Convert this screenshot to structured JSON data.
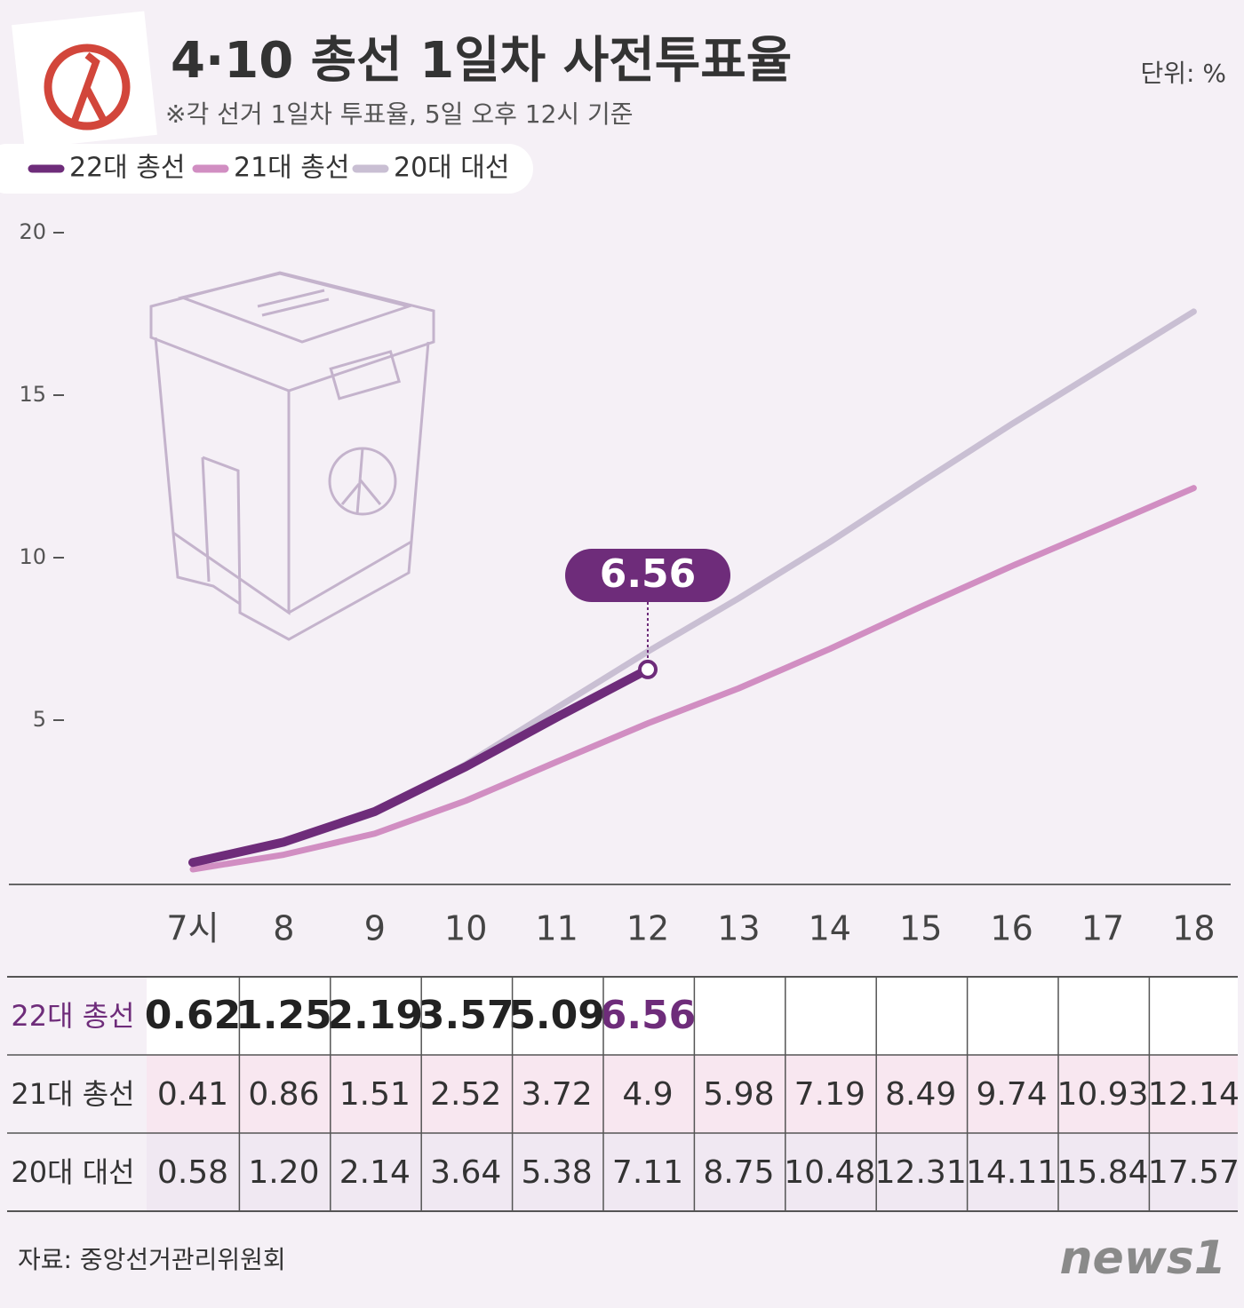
{
  "chart_data": {
    "type": "line",
    "title": "4·10 총선 1일차 사전투표율",
    "subtitle": "※각 선거 1일차 투표율, 5일 오후 12시 기준",
    "unit": "단위: %",
    "source": "자료: 중앙선거관리위원회",
    "brand": "news1",
    "categories": [
      "7시",
      "8",
      "9",
      "10",
      "11",
      "12",
      "13",
      "14",
      "15",
      "16",
      "17",
      "18"
    ],
    "series": [
      {
        "name": "22대 총선",
        "color": "#6e2c7a",
        "values": [
          0.62,
          1.25,
          2.19,
          3.57,
          5.09,
          6.56,
          null,
          null,
          null,
          null,
          null,
          null
        ]
      },
      {
        "name": "21대 총선",
        "color": "#d18ec2",
        "values": [
          0.41,
          0.86,
          1.51,
          2.52,
          3.72,
          4.9,
          5.98,
          7.19,
          8.49,
          9.74,
          10.93,
          12.14
        ]
      },
      {
        "name": "20대 대선",
        "color": "#c9bfd3",
        "values": [
          0.58,
          1.2,
          2.14,
          3.64,
          5.38,
          7.11,
          8.75,
          10.48,
          12.31,
          14.11,
          15.84,
          17.57
        ],
        "value_labels": [
          "0.58",
          "1.20",
          "2.14",
          "3.64",
          "5.38",
          "7.11",
          "8.75",
          "10.48",
          "12.31",
          "14.11",
          "15.84",
          "17.57"
        ]
      }
    ],
    "ylim": [
      0,
      20
    ],
    "yticks": [
      5,
      10,
      15,
      20
    ]
  }
}
